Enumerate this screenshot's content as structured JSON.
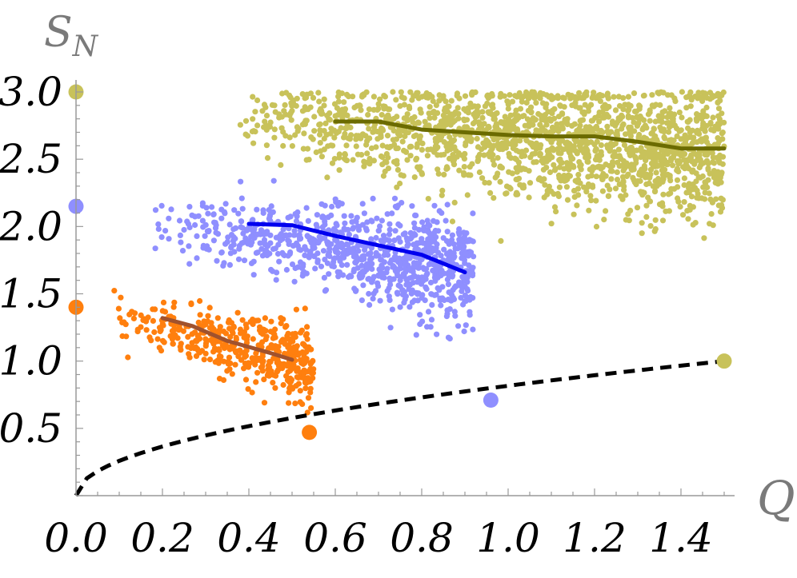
{
  "chart_data": {
    "type": "scatter",
    "xlabel": "Q",
    "ylabel_main": "S",
    "ylabel_sub": "N",
    "xlim": [
      0.0,
      1.5
    ],
    "ylim": [
      0.0,
      3.0
    ],
    "x_ticks": [
      "0.0",
      "0.2",
      "0.4",
      "0.6",
      "0.8",
      "1.0",
      "1.2",
      "1.4"
    ],
    "x_tick_values": [
      0.0,
      0.2,
      0.4,
      0.6,
      0.8,
      1.0,
      1.2,
      1.4
    ],
    "y_ticks": [
      "0.5",
      "1.0",
      "1.5",
      "2.0",
      "2.5",
      "3.0"
    ],
    "y_tick_values": [
      0.5,
      1.0,
      1.5,
      2.0,
      2.5,
      3.0
    ],
    "grid": false,
    "colors": {
      "orange": "#ff7f0e",
      "orange_line": "#a0522d",
      "blue": "#8f8fff",
      "blue_line": "#0000ee",
      "olive": "#c8c25a",
      "olive_line": "#6b6b00",
      "curve": "#000000",
      "axis": "#999999"
    },
    "series": [
      {
        "key": "orange",
        "cloud": {
          "x_range": [
            0.08,
            0.55
          ],
          "center_at_x_min": 1.33,
          "center_at_x_max": 0.97,
          "spread": 0.12,
          "count": 450
        },
        "trend": [
          [
            0.2,
            1.32
          ],
          [
            0.27,
            1.26
          ],
          [
            0.35,
            1.15
          ],
          [
            0.45,
            1.06
          ],
          [
            0.5,
            1.01
          ]
        ],
        "marker_left": [
          0.0,
          1.4
        ],
        "marker_curve": [
          0.54,
          0.47
        ]
      },
      {
        "key": "blue",
        "cloud": {
          "x_range": [
            0.16,
            0.92
          ],
          "center_at_x_min": 2.04,
          "center_at_x_max": 1.66,
          "spread": 0.17,
          "count": 900
        },
        "trend": [
          [
            0.4,
            2.02
          ],
          [
            0.5,
            2.01
          ],
          [
            0.6,
            1.93
          ],
          [
            0.7,
            1.86
          ],
          [
            0.8,
            1.79
          ],
          [
            0.9,
            1.66
          ]
        ],
        "marker_left": [
          0.0,
          2.15
        ],
        "marker_curve": [
          0.96,
          0.71
        ]
      },
      {
        "key": "olive",
        "cloud": {
          "x_range": [
            0.35,
            1.5
          ],
          "center_at_x_min": 2.8,
          "center_at_x_max": 2.55,
          "spread": 0.22,
          "count": 1800
        },
        "trend": [
          [
            0.6,
            2.78
          ],
          [
            0.7,
            2.78
          ],
          [
            0.8,
            2.72
          ],
          [
            0.9,
            2.7
          ],
          [
            1.0,
            2.68
          ],
          [
            1.1,
            2.67
          ],
          [
            1.2,
            2.67
          ],
          [
            1.3,
            2.63
          ],
          [
            1.4,
            2.58
          ],
          [
            1.5,
            2.58
          ]
        ],
        "marker_left": [
          0.0,
          3.0
        ],
        "marker_curve": [
          1.5,
          1.0
        ]
      }
    ],
    "dashed_curve": {
      "formula": "sqrt(Q/1.5)",
      "x_range": [
        0.0,
        1.5
      ]
    }
  }
}
